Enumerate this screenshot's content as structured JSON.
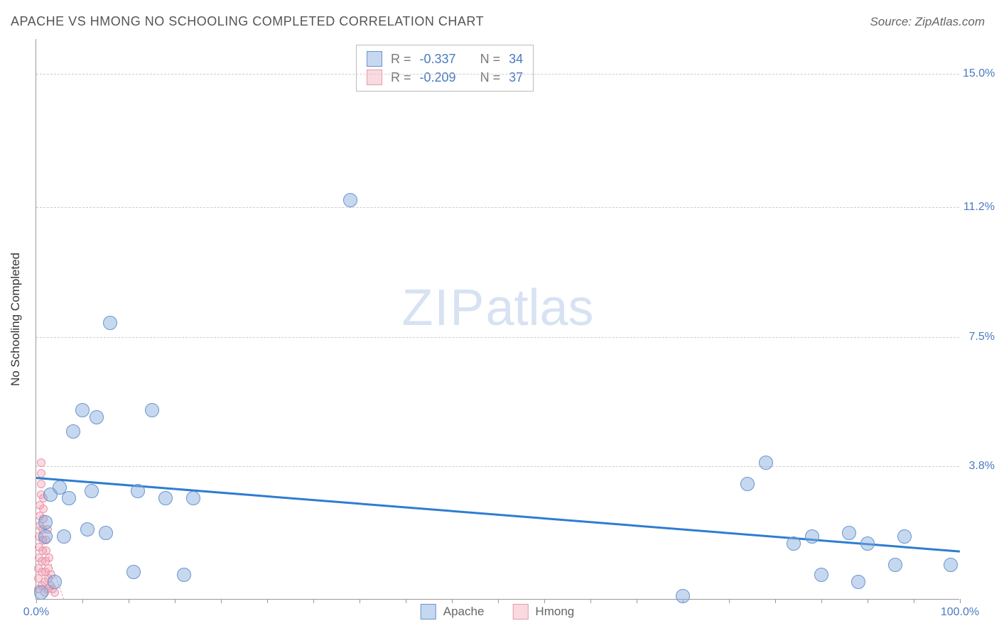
{
  "title": "APACHE VS HMONG NO SCHOOLING COMPLETED CORRELATION CHART",
  "source_label": "Source: ZipAtlas.com",
  "ylabel": "No Schooling Completed",
  "watermark": {
    "zip": "ZIP",
    "atlas": "atlas"
  },
  "chart": {
    "type": "scatter",
    "xlim": [
      0,
      100
    ],
    "ylim": [
      0,
      16
    ],
    "xtick_positions": [
      0,
      5,
      10,
      15,
      20,
      25,
      30,
      35,
      40,
      45,
      50,
      55,
      60,
      65,
      70,
      75,
      80,
      85,
      90,
      95,
      100
    ],
    "xtick_labels": {
      "0": "0.0%",
      "100": "100.0%"
    },
    "ytick_positions": [
      3.8,
      7.5,
      11.2,
      15.0
    ],
    "ytick_labels": [
      "3.8%",
      "7.5%",
      "11.2%",
      "15.0%"
    ],
    "background_color": "#ffffff",
    "grid_color": "#cccccc",
    "axis_label_color": "#4a7abf",
    "series": {
      "apache": {
        "label": "Apache",
        "fill_color": "rgba(128,168,220,0.45)",
        "stroke_color": "#6a95cd",
        "marker_size": 18,
        "correlation": {
          "r": "-0.337",
          "n": "34"
        },
        "trendline": {
          "x1": 0,
          "y1": 3.5,
          "x2": 100,
          "y2": 1.4,
          "color": "#2d7dd2",
          "width": 2.5
        },
        "points": [
          {
            "x": 0.5,
            "y": 0.2
          },
          {
            "x": 1.0,
            "y": 1.8
          },
          {
            "x": 1.0,
            "y": 2.2
          },
          {
            "x": 1.5,
            "y": 3.0
          },
          {
            "x": 2.0,
            "y": 0.5
          },
          {
            "x": 2.5,
            "y": 3.2
          },
          {
            "x": 3.0,
            "y": 1.8
          },
          {
            "x": 3.5,
            "y": 2.9
          },
          {
            "x": 4.0,
            "y": 4.8
          },
          {
            "x": 5.0,
            "y": 5.4
          },
          {
            "x": 5.5,
            "y": 2.0
          },
          {
            "x": 6.0,
            "y": 3.1
          },
          {
            "x": 6.5,
            "y": 5.2
          },
          {
            "x": 7.5,
            "y": 1.9
          },
          {
            "x": 8.0,
            "y": 7.9
          },
          {
            "x": 10.5,
            "y": 0.8
          },
          {
            "x": 11.0,
            "y": 3.1
          },
          {
            "x": 12.5,
            "y": 5.4
          },
          {
            "x": 14.0,
            "y": 2.9
          },
          {
            "x": 16.0,
            "y": 0.7
          },
          {
            "x": 17.0,
            "y": 2.9
          },
          {
            "x": 34.0,
            "y": 11.4
          },
          {
            "x": 70.0,
            "y": 0.1
          },
          {
            "x": 77.0,
            "y": 3.3
          },
          {
            "x": 79.0,
            "y": 3.9
          },
          {
            "x": 82.0,
            "y": 1.6
          },
          {
            "x": 84.0,
            "y": 1.8
          },
          {
            "x": 85.0,
            "y": 0.7
          },
          {
            "x": 88.0,
            "y": 1.9
          },
          {
            "x": 89.0,
            "y": 0.5
          },
          {
            "x": 90.0,
            "y": 1.6
          },
          {
            "x": 93.0,
            "y": 1.0
          },
          {
            "x": 94.0,
            "y": 1.8
          },
          {
            "x": 99.0,
            "y": 1.0
          }
        ]
      },
      "hmong": {
        "label": "Hmong",
        "fill_color": "rgba(240,150,170,0.35)",
        "stroke_color": "#e898ad",
        "marker_size": 12,
        "correlation": {
          "r": "-0.209",
          "n": "37"
        },
        "trendline": {
          "x1": 0,
          "y1": 2.2,
          "x2": 3,
          "y2": 0.0,
          "color": "#e898ad",
          "width": 1.5,
          "dashed": true
        },
        "points": [
          {
            "x": 0.2,
            "y": 0.3
          },
          {
            "x": 0.2,
            "y": 0.6
          },
          {
            "x": 0.2,
            "y": 0.9
          },
          {
            "x": 0.3,
            "y": 1.2
          },
          {
            "x": 0.3,
            "y": 1.5
          },
          {
            "x": 0.3,
            "y": 1.8
          },
          {
            "x": 0.4,
            "y": 2.1
          },
          {
            "x": 0.4,
            "y": 2.4
          },
          {
            "x": 0.4,
            "y": 2.7
          },
          {
            "x": 0.5,
            "y": 3.0
          },
          {
            "x": 0.5,
            "y": 3.3
          },
          {
            "x": 0.5,
            "y": 3.6
          },
          {
            "x": 0.5,
            "y": 3.9
          },
          {
            "x": 0.6,
            "y": 0.4
          },
          {
            "x": 0.6,
            "y": 0.8
          },
          {
            "x": 0.6,
            "y": 1.1
          },
          {
            "x": 0.7,
            "y": 1.4
          },
          {
            "x": 0.7,
            "y": 1.7
          },
          {
            "x": 0.7,
            "y": 2.0
          },
          {
            "x": 0.8,
            "y": 2.3
          },
          {
            "x": 0.8,
            "y": 2.6
          },
          {
            "x": 0.8,
            "y": 2.9
          },
          {
            "x": 0.9,
            "y": 0.2
          },
          {
            "x": 0.9,
            "y": 0.5
          },
          {
            "x": 1.0,
            "y": 0.8
          },
          {
            "x": 1.0,
            "y": 1.1
          },
          {
            "x": 1.1,
            "y": 1.4
          },
          {
            "x": 1.1,
            "y": 1.7
          },
          {
            "x": 1.2,
            "y": 2.0
          },
          {
            "x": 1.2,
            "y": 0.3
          },
          {
            "x": 1.3,
            "y": 0.6
          },
          {
            "x": 1.3,
            "y": 0.9
          },
          {
            "x": 1.4,
            "y": 1.2
          },
          {
            "x": 1.5,
            "y": 0.4
          },
          {
            "x": 1.6,
            "y": 0.7
          },
          {
            "x": 1.8,
            "y": 0.3
          },
          {
            "x": 2.0,
            "y": 0.2
          }
        ]
      }
    }
  },
  "corr_box": {
    "r_label": "R =",
    "n_label": "N ="
  },
  "legend_bottom": {
    "apache": "Apache",
    "hmong": "Hmong"
  }
}
